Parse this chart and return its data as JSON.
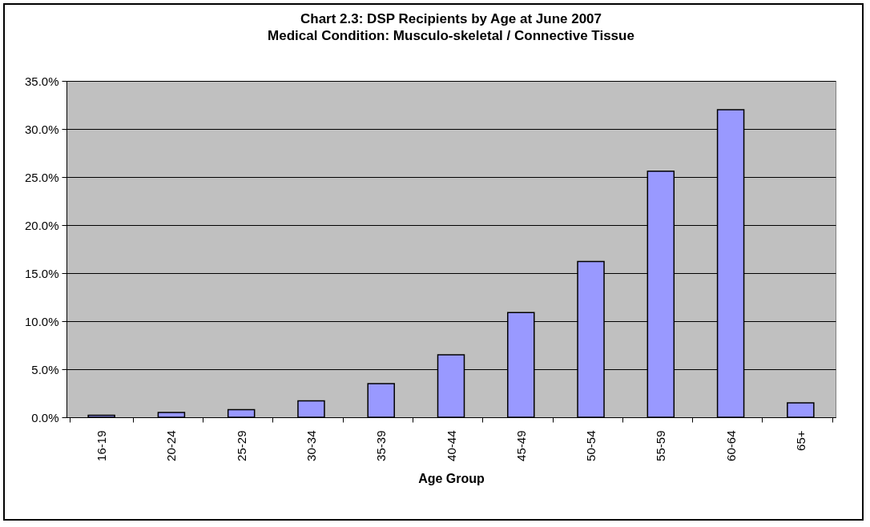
{
  "chart_data": {
    "type": "bar",
    "title": "Chart 2.3: DSP Recipients by Age at June 2007",
    "subtitle": "Medical Condition: Musculo-skeletal / Connective Tissue",
    "xlabel": "Age Group",
    "categories": [
      "16-19",
      "20-24",
      "25-29",
      "30-34",
      "35-39",
      "40-44",
      "45-49",
      "50-54",
      "55-59",
      "60-64",
      "65+"
    ],
    "values": [
      0.2,
      0.5,
      0.8,
      1.7,
      3.5,
      6.5,
      10.9,
      16.2,
      25.6,
      32.0,
      1.5
    ],
    "color": "#9999ff",
    "ylim": [
      0,
      35
    ],
    "yticks": [
      {
        "value": 0,
        "label": "0.0%"
      },
      {
        "value": 5,
        "label": "5.0%"
      },
      {
        "value": 10,
        "label": "10.0%"
      },
      {
        "value": 15,
        "label": "15.0%"
      },
      {
        "value": 20,
        "label": "20.0%"
      },
      {
        "value": 25,
        "label": "25.0%"
      },
      {
        "value": 30,
        "label": "30.0%"
      },
      {
        "value": 35,
        "label": "35.0%"
      }
    ],
    "grid": "y"
  }
}
